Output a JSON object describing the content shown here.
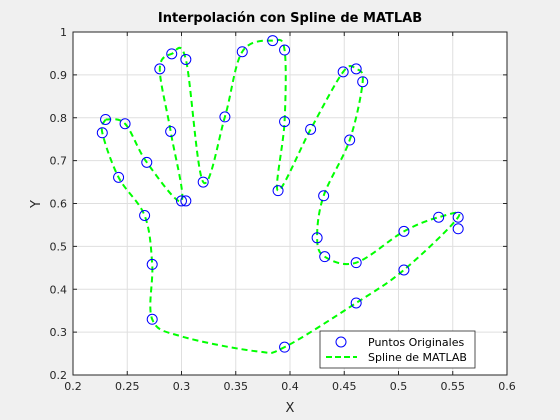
{
  "chart_data": {
    "type": "line",
    "title": "Interpolación con Spline de MATLAB",
    "xlabel": "X",
    "ylabel": "Y",
    "xlim": [
      0.2,
      0.6
    ],
    "ylim": [
      0.2,
      1.0
    ],
    "xticks": [
      0.2,
      0.25,
      0.3,
      0.35,
      0.4,
      0.45,
      0.5,
      0.55,
      0.6
    ],
    "yticks": [
      0.2,
      0.3,
      0.4,
      0.5,
      0.6,
      0.7,
      0.8,
      0.9,
      1.0
    ],
    "xtick_labels": [
      "0.2",
      "0.25",
      "0.3",
      "0.35",
      "0.4",
      "0.45",
      "0.5",
      "0.55",
      "0.6"
    ],
    "ytick_labels": [
      "0.2",
      "0.3",
      "0.4",
      "0.5",
      "0.6",
      "0.7",
      "0.8",
      "0.9",
      "1"
    ],
    "grid": true,
    "legend_position": "bottom-right",
    "colors": {
      "points": "#0000ff",
      "spline": "#00ff00",
      "grid": "#dfdfdf",
      "axis": "#262626"
    },
    "series": [
      {
        "name": "Puntos Originales",
        "kind": "markers",
        "marker": "circle",
        "x": [
          0.227,
          0.23,
          0.248,
          0.242,
          0.268,
          0.266,
          0.273,
          0.273,
          0.395,
          0.461,
          0.505,
          0.555,
          0.555,
          0.537,
          0.505,
          0.461,
          0.432,
          0.425,
          0.431,
          0.455,
          0.467,
          0.461,
          0.449,
          0.419,
          0.389,
          0.395,
          0.395,
          0.384,
          0.356,
          0.34,
          0.32,
          0.304,
          0.291,
          0.28,
          0.29,
          0.3,
          0.304
        ],
        "y": [
          0.765,
          0.796,
          0.786,
          0.661,
          0.696,
          0.572,
          0.458,
          0.33,
          0.265,
          0.368,
          0.445,
          0.541,
          0.568,
          0.568,
          0.535,
          0.462,
          0.476,
          0.52,
          0.618,
          0.748,
          0.884,
          0.914,
          0.907,
          0.773,
          0.63,
          0.791,
          0.958,
          0.98,
          0.954,
          0.802,
          0.65,
          0.936,
          0.949,
          0.914,
          0.768,
          0.606,
          0.606
        ]
      },
      {
        "name": "Spline de MATLAB",
        "kind": "dashed-line",
        "x": [
          0.23,
          0.227,
          0.242,
          0.266,
          0.273,
          0.273,
          0.3,
          0.37,
          0.395,
          0.461,
          0.505,
          0.555,
          0.537,
          0.505,
          0.461,
          0.432,
          0.425,
          0.431,
          0.455,
          0.467,
          0.461,
          0.449,
          0.419,
          0.389,
          0.395,
          0.395,
          0.384,
          0.356,
          0.34,
          0.32,
          0.304,
          0.291,
          0.28,
          0.29,
          0.3,
          0.268,
          0.248,
          0.23
        ],
        "y": [
          0.796,
          0.765,
          0.661,
          0.572,
          0.458,
          0.33,
          0.29,
          0.255,
          0.265,
          0.368,
          0.445,
          0.568,
          0.568,
          0.535,
          0.462,
          0.476,
          0.52,
          0.618,
          0.748,
          0.884,
          0.914,
          0.907,
          0.773,
          0.63,
          0.791,
          0.958,
          0.98,
          0.954,
          0.802,
          0.65,
          0.936,
          0.949,
          0.914,
          0.768,
          0.606,
          0.696,
          0.786,
          0.796
        ]
      }
    ]
  }
}
